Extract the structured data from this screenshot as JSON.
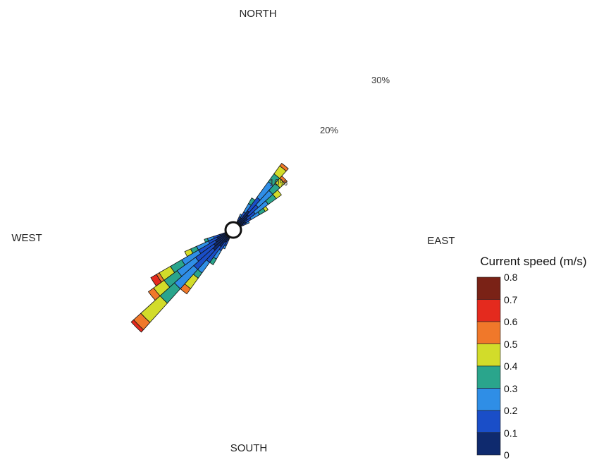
{
  "chart_data": {
    "type": "wind-rose",
    "directions": {
      "north": "NORTH",
      "south": "SOUTH",
      "east": "EAST",
      "west": "WEST"
    },
    "radial_ticks": [
      {
        "value": 10,
        "label": "10%"
      },
      {
        "value": 20,
        "label": "20%"
      },
      {
        "value": 30,
        "label": "30%"
      }
    ],
    "legend": {
      "title": "Current speed (m/s)",
      "tick_labels": [
        "0.8",
        "0.7",
        "0.6",
        "0.5",
        "0.4",
        "0.3",
        "0.2",
        "0.1",
        "0"
      ],
      "bins": [
        {
          "range": [
            0.7,
            0.8
          ],
          "color": "#7a2216"
        },
        {
          "range": [
            0.6,
            0.7
          ],
          "color": "#e42a1e"
        },
        {
          "range": [
            0.5,
            0.6
          ],
          "color": "#f0782a"
        },
        {
          "range": [
            0.4,
            0.5
          ],
          "color": "#d2dc2a"
        },
        {
          "range": [
            0.3,
            0.4
          ],
          "color": "#2aa58c"
        },
        {
          "range": [
            0.2,
            0.3
          ],
          "color": "#2f8ee6"
        },
        {
          "range": [
            0.1,
            0.2
          ],
          "color": "#1a4ec8"
        },
        {
          "range": [
            0.0,
            0.1
          ],
          "color": "#0f2a6e"
        }
      ]
    },
    "sectors": [
      {
        "direction_deg": 39,
        "cumulative_pct": [
          2.5,
          5.0,
          8.0,
          9.5,
          11.0,
          11.5,
          11.5,
          11.5
        ]
      },
      {
        "direction_deg": 45,
        "cumulative_pct": [
          2.0,
          4.0,
          7.0,
          8.5,
          9.5,
          10.0,
          10.0,
          10.0
        ]
      },
      {
        "direction_deg": 51,
        "cumulative_pct": [
          1.5,
          3.0,
          5.5,
          7.0,
          8.0,
          8.0,
          8.0,
          8.0
        ]
      },
      {
        "direction_deg": 57,
        "cumulative_pct": [
          1.0,
          2.0,
          3.5,
          4.5,
          5.0,
          5.0,
          5.0,
          5.0
        ]
      },
      {
        "direction_deg": 33,
        "cumulative_pct": [
          1.0,
          2.0,
          3.5,
          4.5,
          4.5,
          4.5,
          4.5,
          4.5
        ]
      },
      {
        "direction_deg": 225,
        "cumulative_pct": [
          3.0,
          7.0,
          11.0,
          14.0,
          18.0,
          19.5,
          20.0,
          20.0
        ]
      },
      {
        "direction_deg": 231,
        "cumulative_pct": [
          2.5,
          6.0,
          9.5,
          12.0,
          14.0,
          15.0,
          15.0,
          15.0
        ]
      },
      {
        "direction_deg": 237,
        "cumulative_pct": [
          2.0,
          5.0,
          8.0,
          10.0,
          12.0,
          12.5,
          13.5,
          13.5
        ]
      },
      {
        "direction_deg": 219,
        "cumulative_pct": [
          2.0,
          5.0,
          7.0,
          8.0,
          10.0,
          11.0,
          11.0,
          11.0
        ]
      },
      {
        "direction_deg": 213,
        "cumulative_pct": [
          1.0,
          2.5,
          4.0,
          5.0,
          5.0,
          5.0,
          5.0,
          5.0
        ]
      },
      {
        "direction_deg": 243,
        "cumulative_pct": [
          1.5,
          3.0,
          5.0,
          6.0,
          7.0,
          7.0,
          7.0,
          7.0
        ]
      },
      {
        "direction_deg": 249,
        "cumulative_pct": [
          1.0,
          2.0,
          3.0,
          3.5,
          3.5,
          3.5,
          3.5,
          3.5
        ]
      },
      {
        "direction_deg": 207,
        "cumulative_pct": [
          0.5,
          1.5,
          2.0,
          2.0,
          2.0,
          2.0,
          2.0,
          2.0
        ]
      },
      {
        "direction_deg": 63,
        "cumulative_pct": [
          0.5,
          1.0,
          1.5,
          1.5,
          1.5,
          1.5,
          1.5,
          1.5
        ]
      },
      {
        "direction_deg": 27,
        "cumulative_pct": [
          0.5,
          1.0,
          1.5,
          1.5,
          1.5,
          1.5,
          1.5,
          1.5
        ]
      }
    ],
    "center_marker": "calm"
  }
}
